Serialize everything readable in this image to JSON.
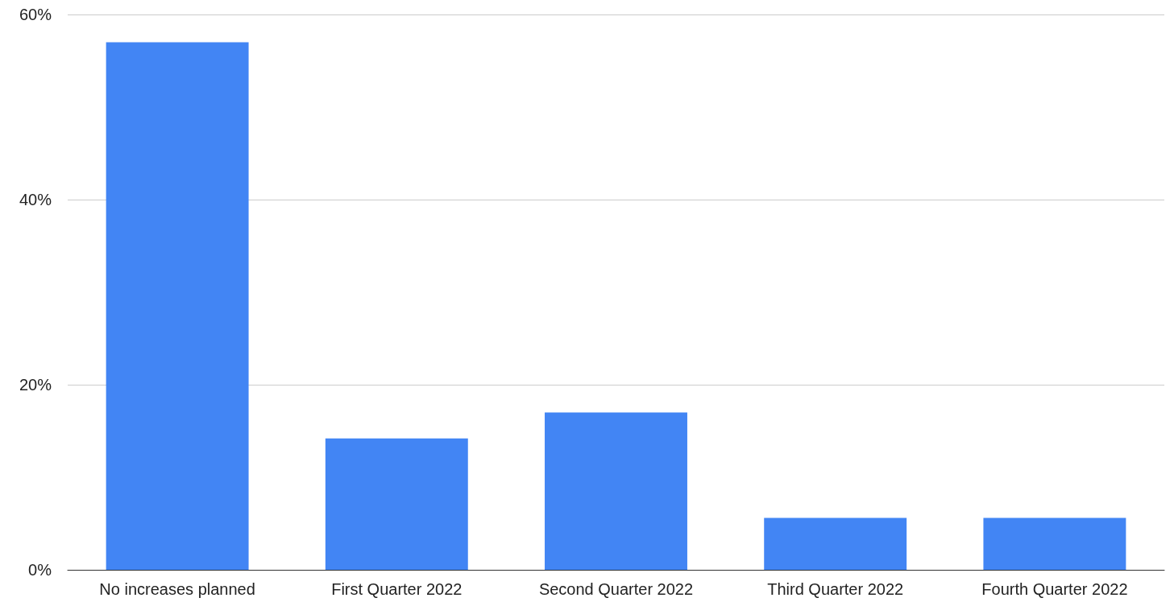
{
  "chart_data": {
    "type": "bar",
    "categories": [
      "No increases planned",
      "First Quarter 2022",
      "Second Quarter 2022",
      "Third Quarter 2022",
      "Fourth Quarter 2022"
    ],
    "values": [
      57,
      14.2,
      17,
      5.6,
      5.6
    ],
    "color": "#4285f4",
    "ylim": [
      0,
      60
    ],
    "yticks": [
      {
        "value": 0,
        "label": "0%"
      },
      {
        "value": 20,
        "label": "20%"
      },
      {
        "value": 40,
        "label": "40%"
      },
      {
        "value": 60,
        "label": "60%"
      }
    ],
    "grid": "y"
  }
}
